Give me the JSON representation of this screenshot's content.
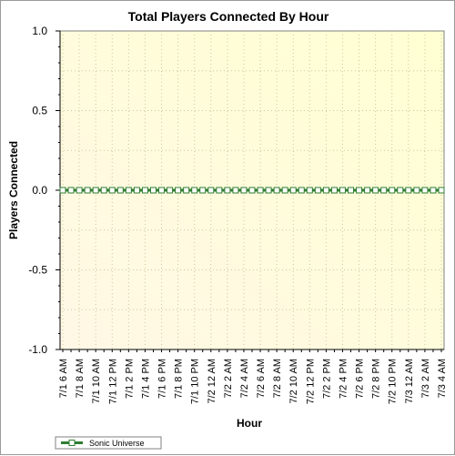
{
  "chart_data": {
    "type": "line",
    "title": "Total Players Connected By Hour",
    "xlabel": "Hour",
    "ylabel": "Players Connected",
    "ylim": [
      -1.0,
      1.0
    ],
    "y_ticks": [
      "1.0",
      "0.5",
      "0.0",
      "-0.5",
      "-1.0"
    ],
    "grid": true,
    "legend_position": "bottom-left",
    "x": [
      "7/1 6 AM",
      "7/1 7 AM",
      "7/1 8 AM",
      "7/1 9 AM",
      "7/1 10 AM",
      "7/1 11 AM",
      "7/1 12 PM",
      "7/1 1 PM",
      "7/1 2 PM",
      "7/1 3 PM",
      "7/1 4 PM",
      "7/1 5 PM",
      "7/1 6 PM",
      "7/1 7 PM",
      "7/1 8 PM",
      "7/1 9 PM",
      "7/1 10 PM",
      "7/1 11 PM",
      "7/2 12 AM",
      "7/2 1 AM",
      "7/2 2 AM",
      "7/2 3 AM",
      "7/2 4 AM",
      "7/2 5 AM",
      "7/2 6 AM",
      "7/2 7 AM",
      "7/2 8 AM",
      "7/2 9 AM",
      "7/2 10 AM",
      "7/2 11 AM",
      "7/2 12 PM",
      "7/2 1 PM",
      "7/2 2 PM",
      "7/2 3 PM",
      "7/2 4 PM",
      "7/2 5 PM",
      "7/2 6 PM",
      "7/2 7 PM",
      "7/2 8 PM",
      "7/2 9 PM",
      "7/2 10 PM",
      "7/2 11 PM",
      "7/3 12 AM",
      "7/3 1 AM",
      "7/3 2 AM",
      "7/3 3 AM",
      "7/3 4 AM"
    ],
    "x_tick_labels": [
      "7/1 6 AM",
      "7/1 8 AM",
      "7/1 10 AM",
      "7/1 12 PM",
      "7/1 2 PM",
      "7/1 4 PM",
      "7/1 6 PM",
      "7/1 8 PM",
      "7/1 10 PM",
      "7/2 12 AM",
      "7/2 2 AM",
      "7/2 4 AM",
      "7/2 6 AM",
      "7/2 8 AM",
      "7/2 10 AM",
      "7/2 12 PM",
      "7/2 2 PM",
      "7/2 4 PM",
      "7/2 6 PM",
      "7/2 8 PM",
      "7/2 10 PM",
      "7/3 12 AM",
      "7/3 2 AM",
      "7/3 4 AM"
    ],
    "series": [
      {
        "name": "Sonic Universe",
        "color": "#2e7d32",
        "values": [
          0,
          0,
          0,
          0,
          0,
          0,
          0,
          0,
          0,
          0,
          0,
          0,
          0,
          0,
          0,
          0,
          0,
          0,
          0,
          0,
          0,
          0,
          0,
          0,
          0,
          0,
          0,
          0,
          0,
          0,
          0,
          0,
          0,
          0,
          0,
          0,
          0,
          0,
          0,
          0,
          0,
          0,
          0,
          0,
          0,
          0,
          0
        ]
      }
    ]
  }
}
